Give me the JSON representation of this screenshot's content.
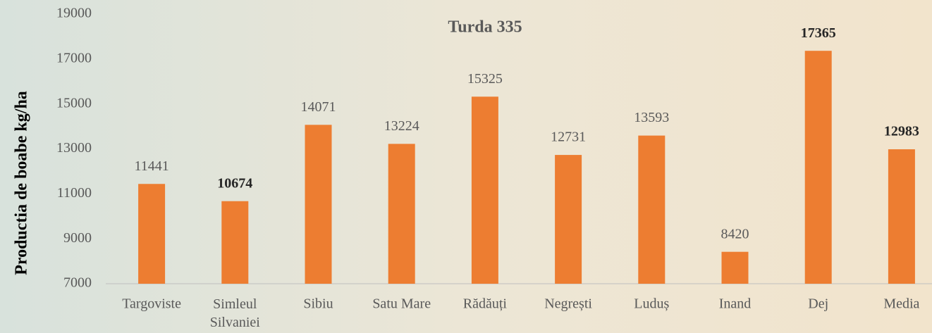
{
  "chart_data": {
    "type": "bar",
    "title": "Turda 335",
    "y_label": "Productia de boabe kg/ha",
    "categories": [
      "Targoviste",
      "Simleul Silvaniei",
      "Sibiu",
      "Satu Mare",
      "Rădăuți",
      "Negrești",
      "Luduș",
      "Inand",
      "Dej",
      "Media"
    ],
    "values": [
      11441,
      10674,
      14071,
      13224,
      15325,
      12731,
      13593,
      8420,
      17365,
      12983
    ],
    "value_label_bold": [
      false,
      true,
      false,
      false,
      false,
      false,
      false,
      false,
      true,
      true
    ],
    "color": "#ed7d31",
    "ylim": [
      7000,
      19000
    ],
    "yticks": [
      7000,
      9000,
      11000,
      13000,
      15000,
      17000,
      19000
    ],
    "grid": false
  }
}
